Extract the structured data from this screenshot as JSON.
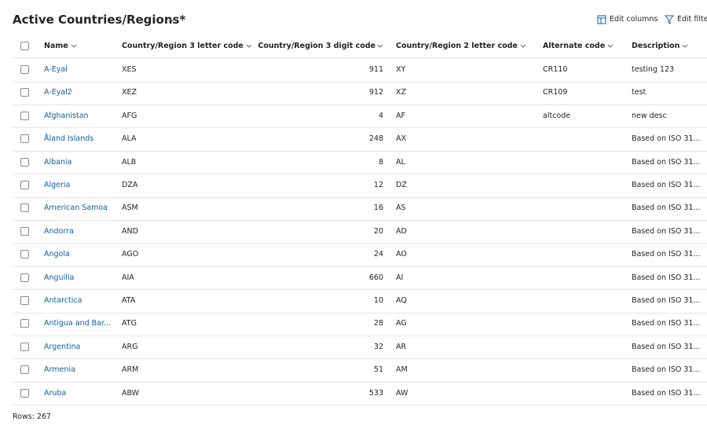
{
  "header": {
    "title": "Active Countries/Regions*",
    "actions": [
      "Edit columns",
      "Edit filter"
    ]
  },
  "table": {
    "columns": [
      "Name",
      "Country/Region 3 letter code",
      "Country/Region 3 digit code",
      "Country/Region 2 letter code",
      "Alternate code",
      "Description"
    ],
    "rows": [
      [
        "A-Eyal",
        "XES",
        911,
        "XY",
        "CR110",
        "testing 123"
      ],
      [
        "A-Eyal2",
        "XEZ",
        912,
        "XZ",
        "CR109",
        "test"
      ],
      [
        "Afghanistan",
        "AFG",
        4,
        "AF",
        "altcode",
        "new desc"
      ],
      [
        "Åland Islands",
        "ALA",
        248,
        "AX",
        null,
        "Based on ISO 31..."
      ],
      [
        "Albania",
        "ALB",
        8,
        "AL",
        null,
        "Based on ISO 31..."
      ],
      [
        "Algeria",
        "DZA",
        12,
        "DZ",
        null,
        "Based on ISO 31..."
      ],
      [
        "American Samoa",
        "ASM",
        16,
        "AS",
        null,
        "Based on ISO 31..."
      ],
      [
        "Andorra",
        "AND",
        20,
        "AD",
        null,
        "Based on ISO 31..."
      ],
      [
        "Angola",
        "AGO",
        24,
        "AO",
        null,
        "Based on ISO 31..."
      ],
      [
        "Anguilla",
        "AIA",
        660,
        "AI",
        null,
        "Based on ISO 31..."
      ],
      [
        "Antarctica",
        "ATA",
        10,
        "AQ",
        null,
        "Based on ISO 31..."
      ],
      [
        "Antigua and Bar...",
        "ATG",
        28,
        "AG",
        null,
        "Based on ISO 31..."
      ],
      [
        "Argentina",
        "ARG",
        32,
        "AR",
        null,
        "Based on ISO 31..."
      ],
      [
        "Armenia",
        "ARM",
        51,
        "AM",
        null,
        "Based on ISO 31..."
      ],
      [
        "Aruba",
        "ABW",
        533,
        "AW",
        null,
        "Based on ISO 31..."
      ]
    ]
  },
  "footer": {
    "rows_label": "Rows: 267"
  }
}
